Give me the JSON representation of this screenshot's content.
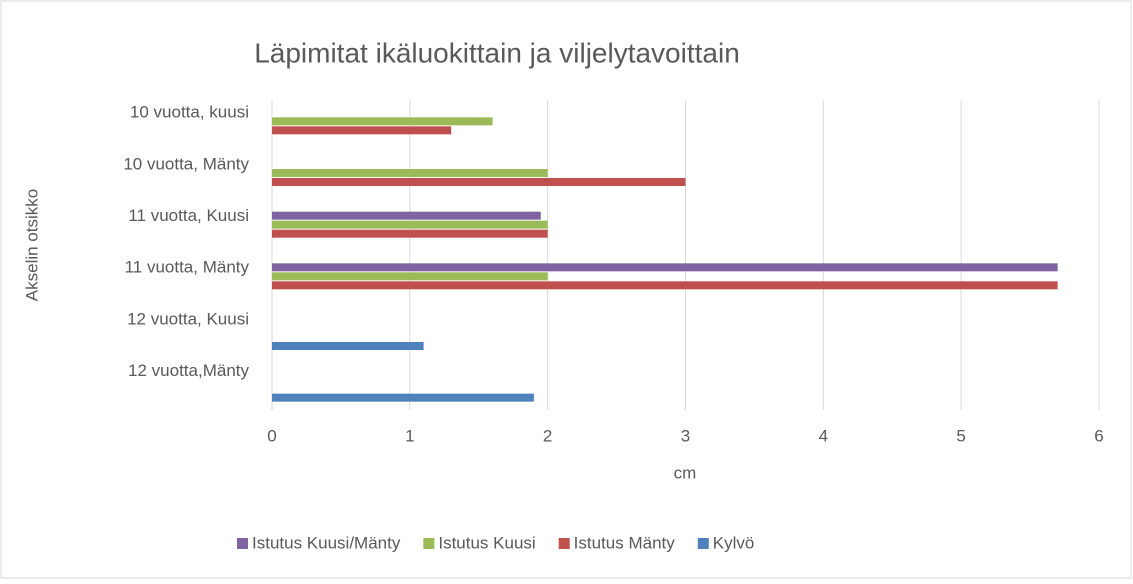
{
  "chart_data": {
    "type": "barh",
    "title": "Läpimitat  ikäluokittain ja viljelytavoittain",
    "x_label": "cm",
    "y_label": "Akselin otsikko",
    "categories": [
      "10 vuotta, kuusi",
      "10 vuotta, Mänty",
      "11 vuotta, Kuusi",
      "11 vuotta, Mänty",
      "12 vuotta, Kuusi",
      "12 vuotta,Mänty"
    ],
    "series": [
      {
        "name": "Istutus Kuusi/Mänty",
        "color": "#8064a2",
        "values": [
          null,
          null,
          1.95,
          5.7,
          null,
          null
        ]
      },
      {
        "name": "Istutus Kuusi",
        "color": "#9bbb59",
        "values": [
          1.6,
          2,
          2,
          2,
          null,
          null
        ]
      },
      {
        "name": "Istutus Mänty",
        "color": "#c0504d",
        "values": [
          1.3,
          3,
          2,
          5.7,
          null,
          null
        ]
      },
      {
        "name": "Kylvö",
        "color": "#4f81bd",
        "values": [
          null,
          null,
          null,
          null,
          1.1,
          1.9
        ]
      }
    ],
    "xlim": [
      0,
      6
    ],
    "xticks": [
      0,
      1,
      2,
      3,
      4,
      5,
      6
    ],
    "grid": true,
    "legend": "bottom"
  }
}
